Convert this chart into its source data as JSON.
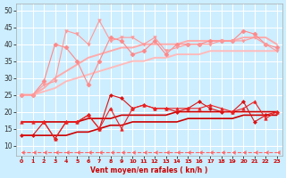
{
  "background_color": "#cceeff",
  "grid_color": "#ffffff",
  "xlabel": "Vent moyen/en rafales ( kn/h )",
  "xlim": [
    -0.5,
    23.5
  ],
  "ylim": [
    7,
    52
  ],
  "yticks": [
    10,
    15,
    20,
    25,
    30,
    35,
    40,
    45,
    50
  ],
  "xticks": [
    0,
    1,
    2,
    3,
    4,
    5,
    6,
    7,
    8,
    9,
    10,
    11,
    12,
    13,
    14,
    15,
    16,
    17,
    18,
    19,
    20,
    21,
    22,
    23
  ],
  "series": [
    {
      "x": [
        0,
        1,
        2,
        3,
        4,
        5,
        6,
        7,
        8,
        9,
        10,
        11,
        12,
        13,
        14,
        15,
        16,
        17,
        18,
        19,
        20,
        21,
        22,
        23
      ],
      "y": [
        8,
        8,
        8,
        8,
        8,
        8,
        8,
        8,
        8,
        8,
        8,
        8,
        8,
        8,
        8,
        8,
        8,
        8,
        8,
        8,
        8,
        8,
        8,
        8
      ],
      "color": "#ff6666",
      "lw": 0.8,
      "marker": 4,
      "ms": 3,
      "ls": "--",
      "mec": "#ff6666"
    },
    {
      "x": [
        0,
        1,
        2,
        3,
        4,
        5,
        6,
        7,
        8,
        9,
        10,
        11,
        12,
        13,
        14,
        15,
        16,
        17,
        18,
        19,
        20,
        21,
        22,
        23
      ],
      "y": [
        13,
        13,
        13,
        13,
        13,
        14,
        14,
        15,
        16,
        16,
        17,
        17,
        17,
        17,
        17,
        18,
        18,
        18,
        18,
        18,
        19,
        19,
        19,
        19
      ],
      "color": "#cc0000",
      "lw": 1.2,
      "marker": null,
      "ls": "-"
    },
    {
      "x": [
        0,
        1,
        2,
        3,
        4,
        5,
        6,
        7,
        8,
        9,
        10,
        11,
        12,
        13,
        14,
        15,
        16,
        17,
        18,
        19,
        20,
        21,
        22,
        23
      ],
      "y": [
        17,
        17,
        17,
        17,
        17,
        17,
        18,
        18,
        18,
        19,
        19,
        19,
        19,
        19,
        20,
        20,
        20,
        20,
        20,
        20,
        20,
        20,
        20,
        20
      ],
      "color": "#cc0000",
      "lw": 1.2,
      "marker": null,
      "ls": "-"
    },
    {
      "x": [
        0,
        1,
        2,
        3,
        4,
        5,
        6,
        7,
        8,
        9,
        10,
        11,
        12,
        13,
        14,
        15,
        16,
        17,
        18,
        19,
        20,
        21,
        22,
        23
      ],
      "y": [
        13,
        13,
        17,
        12,
        17,
        17,
        19,
        15,
        25,
        24,
        21,
        22,
        21,
        21,
        20,
        21,
        23,
        21,
        20,
        20,
        23,
        17,
        19,
        20
      ],
      "color": "#dd1111",
      "lw": 0.8,
      "marker": "D",
      "ms": 2,
      "ls": "-",
      "mec": "#dd1111"
    },
    {
      "x": [
        0,
        1,
        2,
        3,
        4,
        5,
        6,
        7,
        8,
        9,
        10,
        11,
        12,
        13,
        14,
        15,
        16,
        17,
        18,
        19,
        20,
        21,
        22,
        23
      ],
      "y": [
        17,
        17,
        17,
        12,
        17,
        17,
        19,
        15,
        21,
        15,
        21,
        22,
        21,
        21,
        21,
        21,
        21,
        22,
        21,
        20,
        21,
        23,
        18,
        20
      ],
      "color": "#ee2222",
      "lw": 0.8,
      "marker": "^",
      "ms": 2.5,
      "ls": "-",
      "mec": "#ee2222"
    },
    {
      "x": [
        0,
        1,
        2,
        3,
        4,
        5,
        6,
        7,
        8,
        9,
        10,
        11,
        12,
        13,
        14,
        15,
        16,
        17,
        18,
        19,
        20,
        21,
        22,
        23
      ],
      "y": [
        25,
        25,
        26,
        27,
        29,
        30,
        31,
        32,
        33,
        34,
        35,
        35,
        36,
        36,
        37,
        37,
        37,
        38,
        38,
        38,
        38,
        38,
        38,
        38
      ],
      "color": "#ffbbbb",
      "lw": 1.4,
      "marker": null,
      "ls": "-"
    },
    {
      "x": [
        0,
        1,
        2,
        3,
        4,
        5,
        6,
        7,
        8,
        9,
        10,
        11,
        12,
        13,
        14,
        15,
        16,
        17,
        18,
        19,
        20,
        21,
        22,
        23
      ],
      "y": [
        25,
        25,
        27,
        30,
        32,
        34,
        36,
        37,
        38,
        39,
        39,
        40,
        40,
        40,
        40,
        41,
        41,
        41,
        41,
        41,
        42,
        42,
        42,
        40
      ],
      "color": "#ffaaaa",
      "lw": 1.4,
      "marker": null,
      "ls": "-"
    },
    {
      "x": [
        0,
        1,
        2,
        3,
        4,
        5,
        6,
        7,
        8,
        9,
        10,
        11,
        12,
        13,
        14,
        15,
        16,
        17,
        18,
        19,
        20,
        21,
        22,
        23
      ],
      "y": [
        25,
        25,
        29,
        40,
        39,
        35,
        28,
        35,
        42,
        41,
        37,
        38,
        41,
        37,
        40,
        40,
        40,
        41,
        41,
        41,
        44,
        43,
        40,
        39
      ],
      "color": "#ff8888",
      "lw": 0.8,
      "marker": "D",
      "ms": 2.5,
      "ls": "-",
      "mec": "#ff8888"
    },
    {
      "x": [
        0,
        1,
        2,
        3,
        4,
        5,
        6,
        7,
        8,
        9,
        10,
        11,
        12,
        13,
        14,
        15,
        16,
        17,
        18,
        19,
        20,
        21,
        22,
        23
      ],
      "y": [
        25,
        25,
        28,
        29,
        44,
        43,
        40,
        47,
        41,
        42,
        42,
        40,
        42,
        38,
        39,
        40,
        40,
        40,
        41,
        41,
        41,
        42,
        40,
        38
      ],
      "color": "#ff9999",
      "lw": 0.8,
      "marker": "v",
      "ms": 2.5,
      "ls": "-",
      "mec": "#ff9999"
    }
  ]
}
